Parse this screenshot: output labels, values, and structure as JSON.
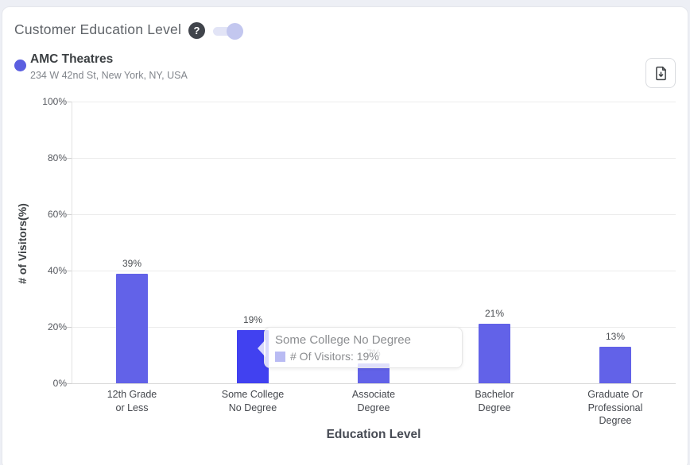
{
  "header": {
    "title": "Customer Education Level",
    "help_glyph": "?",
    "toggle_state": "on"
  },
  "legend": {
    "name": "AMC Theatres",
    "address": "234 W 42nd St, New York, NY, USA",
    "dot_color": "#5b5fe0"
  },
  "toolbar": {
    "download_icon": "file-download"
  },
  "chart_data": {
    "type": "bar",
    "title": "Customer Education Level",
    "categories": [
      "12th Grade\nor Less",
      "Some College\nNo Degree",
      "Associate\nDegree",
      "Bachelor\nDegree",
      "Graduate Or\nProfessional\nDegree"
    ],
    "values": [
      39,
      19,
      7,
      21,
      13
    ],
    "value_labels": [
      "39%",
      "19%",
      "7%",
      "21%",
      "13%"
    ],
    "xlabel": "Education Level",
    "ylabel": "# of Visitors(%)",
    "ylim": [
      0,
      100
    ],
    "ytick_labels": [
      "0%",
      "20%",
      "40%",
      "60%",
      "80%",
      "100%"
    ],
    "grid": true,
    "legend_position": "top-left",
    "bar_color": "#6262e8",
    "bar_hover_color": "#4141f0",
    "hovered_index": 1,
    "tooltip": {
      "title": "Some College No Degree",
      "label": "# Of Visitors: 19%",
      "swatch_color": "#b9bbf3"
    }
  }
}
